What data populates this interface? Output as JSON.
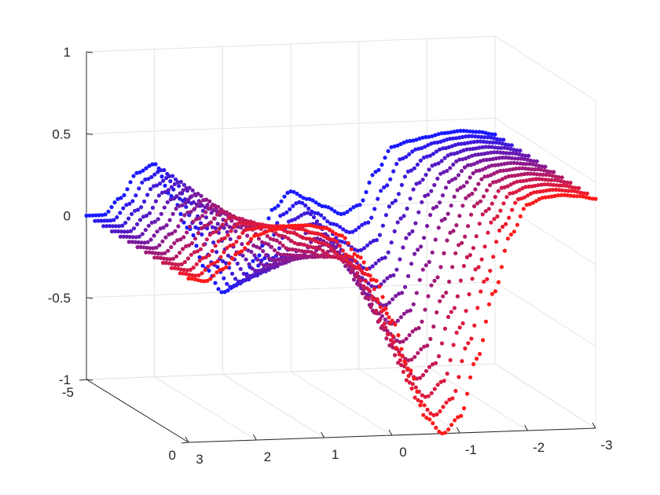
{
  "chart_data": {
    "type": "scatter",
    "title": "",
    "xlabel": "",
    "ylabel": "",
    "zlabel": "",
    "x_axis": {
      "range": [
        -3,
        3
      ],
      "ticks": [
        "3",
        "2",
        "1",
        "0",
        "-1",
        "-2",
        "-3"
      ]
    },
    "y_axis": {
      "range": [
        -5,
        0
      ],
      "ticks": [
        "-5",
        "0"
      ]
    },
    "z_axis": {
      "range": [
        -1,
        1
      ],
      "ticks": [
        "1",
        "0.5",
        "0",
        "-0.5",
        "-1"
      ]
    },
    "grid": true,
    "box": false,
    "view": "3d-perspective",
    "colormap": {
      "start": "#1a1aff",
      "end": "#ff1a1a"
    },
    "marker": "dot",
    "series_count": 13,
    "x_samples": [
      -3.0,
      -2.75,
      -2.5,
      -2.25,
      -2.0,
      -1.75,
      -1.5,
      -1.25,
      -1.0,
      -0.75,
      -0.5,
      -0.25,
      0.0,
      0.25,
      0.5,
      0.75,
      1.0,
      1.25,
      1.5,
      1.75,
      2.0,
      2.25,
      2.5,
      2.75,
      3.0
    ],
    "front_slice": {
      "y": 0,
      "z": [
        0.4,
        0.42,
        0.43,
        0.42,
        0.38,
        0.2,
        -0.15,
        -0.55,
        -0.9,
        -1.0,
        -0.9,
        -0.6,
        -0.3,
        -0.05,
        0.1,
        0.23,
        0.28,
        0.3,
        0.3,
        0.28,
        0.25,
        0.15,
        0.05,
        -0.02,
        0.0
      ]
    },
    "back_slice": {
      "y": -5,
      "z": [
        0.4,
        0.42,
        0.43,
        0.42,
        0.4,
        0.38,
        0.35,
        0.2,
        0.0,
        -0.05,
        0.0,
        0.05,
        0.1,
        0.0,
        -0.3,
        -0.45,
        -0.5,
        -0.35,
        -0.1,
        0.1,
        0.3,
        0.25,
        0.1,
        0.0,
        0.0
      ]
    }
  }
}
